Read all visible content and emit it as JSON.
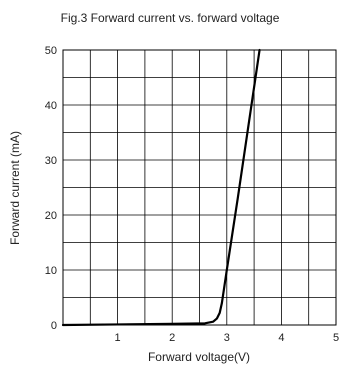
{
  "chart_data": {
    "type": "line",
    "title": "Fig.3 Forward current vs. forward voltage",
    "xlabel": "Forward voltage(V)",
    "ylabel": "Forward current (mA)",
    "xlim": [
      0,
      5
    ],
    "ylim": [
      0,
      50
    ],
    "x_ticks": [
      "1",
      "2",
      "3",
      "4",
      "5"
    ],
    "y_ticks": [
      "0",
      "10",
      "20",
      "30",
      "40",
      "50"
    ],
    "grid": true,
    "line_color": "#000000",
    "series": [
      {
        "x": [
          0.0,
          1.0,
          2.0,
          2.6,
          2.75,
          2.82,
          2.87,
          2.91,
          3.0,
          3.2,
          3.4,
          3.6
        ],
        "y": [
          0.0,
          0.1,
          0.2,
          0.3,
          0.6,
          1.2,
          2.2,
          4.0,
          10.0,
          23.0,
          36.5,
          50.0
        ]
      }
    ]
  }
}
